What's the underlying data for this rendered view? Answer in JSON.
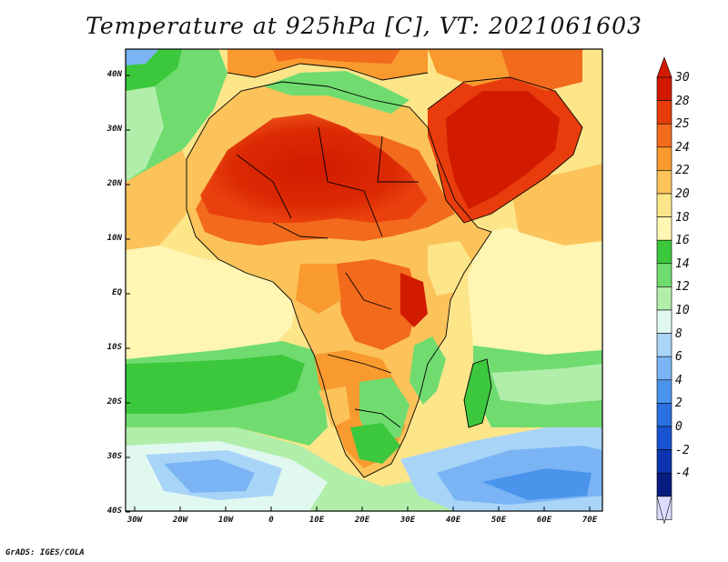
{
  "title": "Temperature at 925hPa [C], VT: 2021061603",
  "credit": "GrADS: IGES/COLA",
  "map": {
    "x_ticks": [
      "30W",
      "20W",
      "10W",
      "0",
      "10E",
      "20E",
      "30E",
      "40E",
      "50E",
      "60E",
      "70E"
    ],
    "y_ticks": [
      "40N",
      "30N",
      "20N",
      "10N",
      "EQ",
      "10S",
      "20S",
      "30S",
      "40S"
    ],
    "lon_range": [
      -30,
      75
    ],
    "lat_range": [
      -40,
      45
    ]
  },
  "colorbar": {
    "labels": [
      "30",
      "28",
      "25",
      "24",
      "22",
      "20",
      "18",
      "16",
      "14",
      "12",
      "10",
      "8",
      "6",
      "4",
      "2",
      "0",
      "-2",
      "-4"
    ],
    "colors": [
      "#d21a00",
      "#e83c0c",
      "#f26a1c",
      "#f99a2e",
      "#fbc35a",
      "#fde58a",
      "#fff6b4",
      "#3cc83c",
      "#70dc70",
      "#b0eeaa",
      "#e0f8f0",
      "#a8d4f8",
      "#7ab4f4",
      "#4a94ec",
      "#2a70e0",
      "#1652d2",
      "#0c34b0",
      "#061c80",
      "#dcdcff"
    ],
    "top_arrow_color": "#d21a00",
    "bottom_arrow_color": "#dcdcff"
  }
}
